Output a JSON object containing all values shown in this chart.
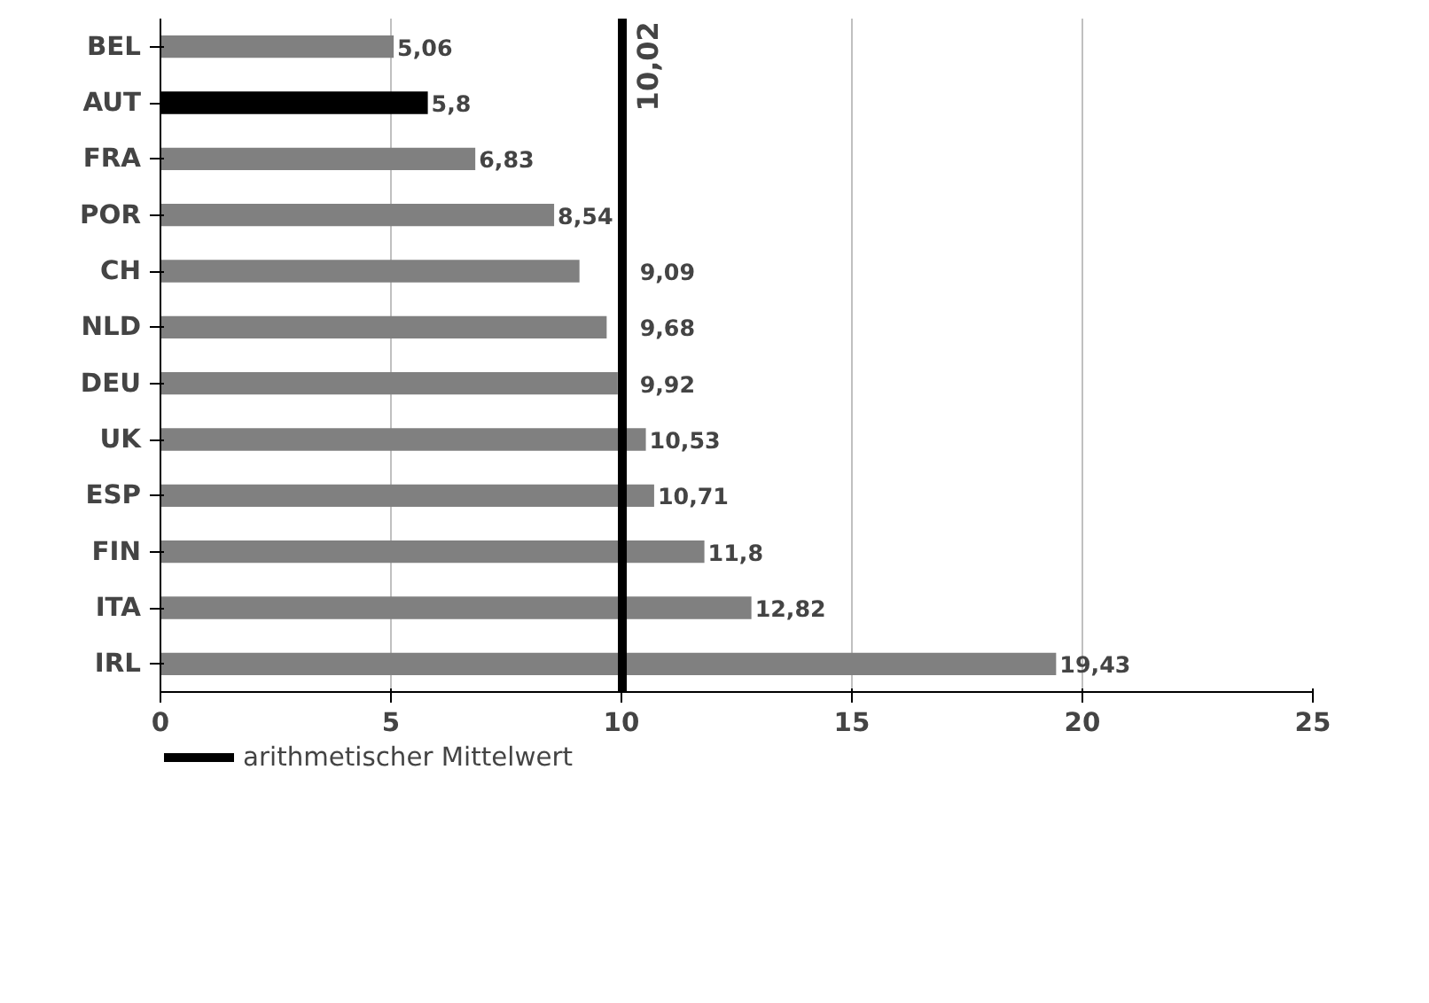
{
  "chart_data": {
    "type": "bar",
    "orientation": "horizontal",
    "categories": [
      "BEL",
      "AUT",
      "FRA",
      "POR",
      "CH",
      "NLD",
      "DEU",
      "UK",
      "ESP",
      "FIN",
      "ITA",
      "IRL"
    ],
    "values": [
      5.06,
      5.8,
      6.83,
      8.54,
      9.09,
      9.68,
      9.92,
      10.53,
      10.71,
      11.8,
      12.82,
      19.43
    ],
    "value_labels": [
      "5,06",
      "5,8",
      "6,83",
      "8,54",
      "9,09",
      "9,68",
      "9,92",
      "10,53",
      "10,71",
      "11,8",
      "12,82",
      "19,43"
    ],
    "colors": [
      "#808080",
      "#000000",
      "#808080",
      "#808080",
      "#808080",
      "#808080",
      "#808080",
      "#808080",
      "#808080",
      "#808080",
      "#808080",
      "#808080"
    ],
    "xlim": [
      0,
      25
    ],
    "xticks": [
      0,
      5,
      10,
      15,
      20,
      25
    ],
    "grid": "x",
    "legend": "bottom left",
    "ref_lines": [
      {
        "axis": "x",
        "value": 10.02,
        "label": "arithmetischer Mittelwert",
        "color": "#000000"
      }
    ],
    "annotations": [
      "10,02"
    ]
  }
}
